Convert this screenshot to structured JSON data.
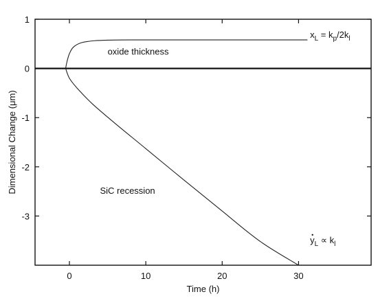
{
  "chart_data": {
    "type": "line",
    "xlabel": "Time (h)",
    "ylabel": "Dimensional Change (μm)",
    "xlim": [
      -4.5,
      39.5
    ],
    "ylim": [
      -4,
      1
    ],
    "xticks": [
      0,
      10,
      20,
      30
    ],
    "yticks": [
      1,
      0,
      -1,
      -2,
      -3
    ],
    "grid": false,
    "series": [
      {
        "x": [
          -0.5,
          -0.3,
          0,
          0.5,
          1.5,
          3,
          5,
          8,
          12,
          20,
          30,
          31
        ],
        "y": [
          0,
          0.15,
          0.3,
          0.43,
          0.52,
          0.56,
          0.575,
          0.58,
          0.58,
          0.58,
          0.58,
          0.58
        ]
      },
      {
        "x": [
          -0.5,
          0,
          1,
          3,
          6,
          10,
          15,
          20,
          25,
          30
        ],
        "y": [
          0,
          -0.2,
          -0.4,
          -0.72,
          -1.12,
          -1.63,
          -2.27,
          -2.9,
          -3.52,
          -4.0
        ]
      }
    ],
    "hlines": [
      0
    ],
    "annotations": [
      {
        "text": "oxide thickness",
        "x": 5,
        "y": 0.28
      },
      {
        "text": "SiC recession",
        "x": 4,
        "y": -2.55
      },
      {
        "text": "x_L = k_p/2k_l",
        "x": 31.5,
        "y": 0.62
      },
      {
        "text": "y_L ∝ k_l",
        "x": 31.5,
        "y": -3.55
      }
    ]
  }
}
